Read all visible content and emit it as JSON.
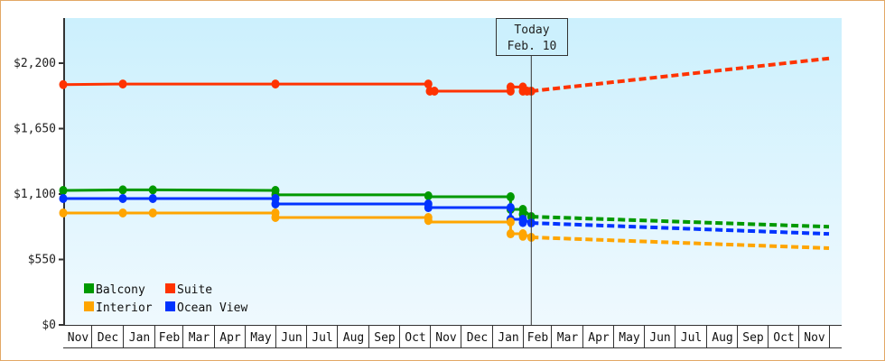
{
  "chart_data": {
    "type": "line",
    "title": "",
    "xlabel": "",
    "ylabel": "",
    "ylim": [
      0,
      2600
    ],
    "y_ticks": [
      {
        "value": 0,
        "label": "$0"
      },
      {
        "value": 550,
        "label": "$550"
      },
      {
        "value": 1100,
        "label": "$1,100"
      },
      {
        "value": 1650,
        "label": "$1,650"
      },
      {
        "value": 2200,
        "label": "$2,200"
      }
    ],
    "x_months": [
      "Nov",
      "Dec",
      "Jan",
      "Feb",
      "Mar",
      "Apr",
      "May",
      "Jun",
      "Jul",
      "Aug",
      "Sep",
      "Oct",
      "Nov",
      "Dec",
      "Jan",
      "Feb",
      "Mar",
      "Apr",
      "May",
      "Jun",
      "Jul",
      "Aug",
      "Sep",
      "Oct",
      "Nov"
    ],
    "today_marker": {
      "line1": "Today",
      "line2": "Feb. 10",
      "month_index": 15.3
    },
    "legend": [
      {
        "name": "Balcony",
        "color": "#009900"
      },
      {
        "name": "Suite",
        "color": "#ff3300"
      },
      {
        "name": "Interior",
        "color": "#ffa500"
      },
      {
        "name": "Ocean View",
        "color": "#0033ff"
      }
    ],
    "series": [
      {
        "name": "Suite",
        "color": "#ff3300",
        "history": [
          [
            0.0,
            2020
          ],
          [
            2.0,
            2025
          ],
          [
            7.0,
            2025
          ],
          [
            11.95,
            2025
          ],
          [
            12.0,
            1965
          ],
          [
            14.6,
            1965
          ],
          [
            14.6,
            2000
          ],
          [
            15.0,
            2000
          ],
          [
            15.3,
            1965
          ]
        ],
        "markers": [
          [
            0.0,
            2020
          ],
          [
            2.0,
            2025
          ],
          [
            7.0,
            2025
          ],
          [
            11.95,
            2025
          ],
          [
            12.0,
            1965
          ],
          [
            12.15,
            1965
          ],
          [
            14.6,
            1965
          ],
          [
            14.6,
            2000
          ],
          [
            15.0,
            2000
          ],
          [
            15.0,
            1965
          ],
          [
            15.3,
            1965
          ],
          [
            15.15,
            1965
          ]
        ],
        "forecast": [
          [
            15.3,
            1965
          ],
          [
            25.0,
            2240
          ]
        ]
      },
      {
        "name": "Balcony",
        "color": "#009900",
        "history": [
          [
            0.0,
            1130
          ],
          [
            2.0,
            1135
          ],
          [
            2.95,
            1135
          ],
          [
            7.0,
            1130
          ],
          [
            7.0,
            1093
          ],
          [
            11.95,
            1093
          ],
          [
            11.95,
            1077
          ],
          [
            14.6,
            1077
          ],
          [
            14.6,
            971
          ],
          [
            15.0,
            971
          ],
          [
            15.3,
            910
          ]
        ],
        "markers": [
          [
            0.0,
            1130
          ],
          [
            2.0,
            1135
          ],
          [
            2.95,
            1135
          ],
          [
            7.0,
            1130
          ],
          [
            7.0,
            1093
          ],
          [
            11.95,
            1085
          ],
          [
            14.6,
            1077
          ],
          [
            14.6,
            971
          ],
          [
            15.0,
            971
          ],
          [
            15.0,
            930
          ],
          [
            15.3,
            910
          ]
        ],
        "forecast": [
          [
            15.3,
            910
          ],
          [
            25.0,
            825
          ]
        ]
      },
      {
        "name": "Ocean View",
        "color": "#0033ff",
        "history": [
          [
            0.0,
            1062
          ],
          [
            2.0,
            1062
          ],
          [
            2.95,
            1062
          ],
          [
            7.0,
            1062
          ],
          [
            7.0,
            1017
          ],
          [
            11.95,
            1017
          ],
          [
            11.95,
            986
          ],
          [
            14.6,
            986
          ],
          [
            14.6,
            888
          ],
          [
            15.0,
            888
          ],
          [
            15.3,
            857
          ]
        ],
        "markers": [
          [
            0.0,
            1062
          ],
          [
            2.0,
            1062
          ],
          [
            2.95,
            1062
          ],
          [
            7.0,
            1062
          ],
          [
            7.0,
            1017
          ],
          [
            11.95,
            1017
          ],
          [
            11.95,
            986
          ],
          [
            14.6,
            986
          ],
          [
            14.6,
            888
          ],
          [
            15.0,
            888
          ],
          [
            15.0,
            860
          ],
          [
            15.3,
            857
          ]
        ],
        "forecast": [
          [
            15.3,
            857
          ],
          [
            25.0,
            765
          ]
        ]
      },
      {
        "name": "Interior",
        "color": "#ffa500",
        "history": [
          [
            0.0,
            941
          ],
          [
            2.0,
            941
          ],
          [
            2.95,
            941
          ],
          [
            7.0,
            941
          ],
          [
            7.0,
            903
          ],
          [
            11.95,
            903
          ],
          [
            11.95,
            865
          ],
          [
            14.6,
            865
          ],
          [
            14.6,
            766
          ],
          [
            15.0,
            766
          ],
          [
            15.3,
            736
          ]
        ],
        "markers": [
          [
            0.0,
            941
          ],
          [
            2.0,
            941
          ],
          [
            2.95,
            941
          ],
          [
            7.0,
            941
          ],
          [
            7.0,
            903
          ],
          [
            11.95,
            903
          ],
          [
            11.95,
            878
          ],
          [
            14.6,
            865
          ],
          [
            14.6,
            766
          ],
          [
            15.0,
            766
          ],
          [
            15.0,
            745
          ],
          [
            15.3,
            736
          ]
        ],
        "forecast": [
          [
            15.3,
            736
          ],
          [
            25.0,
            645
          ]
        ]
      }
    ]
  }
}
